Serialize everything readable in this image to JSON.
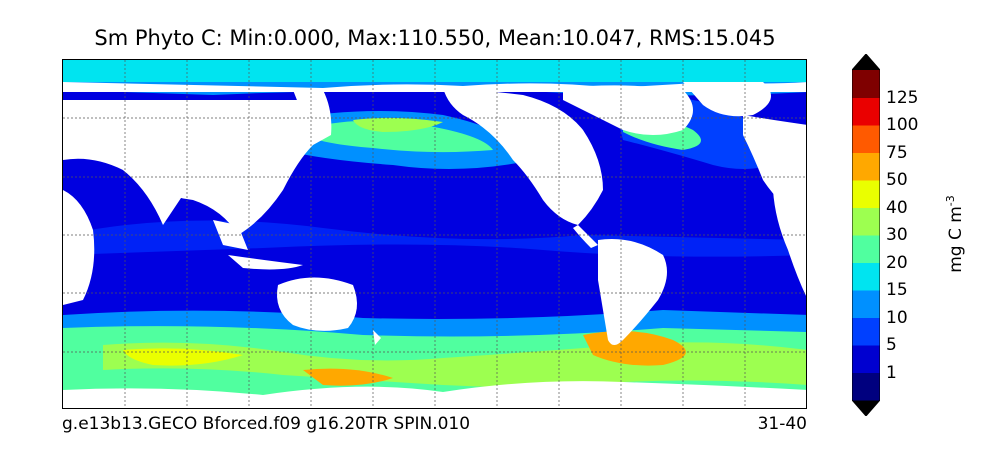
{
  "title": "Sm Phyto C: Min:0.000, Max:110.550, Mean:10.047, RMS:15.045",
  "footer": {
    "case_name": "g.e13b13.GECO Bforced.f09 g16.20TR SPIN.010",
    "years": "31-40"
  },
  "colorbar": {
    "label": "mg C m",
    "label_exponent": "-3",
    "extend": "both",
    "ticks": [
      "1",
      "5",
      "10",
      "15",
      "20",
      "30",
      "40",
      "50",
      "75",
      "100",
      "125"
    ],
    "colors": [
      "#00007f",
      "#0000d0",
      "#0040ff",
      "#0090ff",
      "#00e4f0",
      "#50ff9f",
      "#9dff50",
      "#eaff00",
      "#ffa800",
      "#ff5a00",
      "#ea0000",
      "#7f0000"
    ],
    "under_color": "#000000",
    "over_color": "#000000"
  },
  "map": {
    "projection": "global cylindrical",
    "land_color": "#ffffff",
    "grid": true
  }
}
